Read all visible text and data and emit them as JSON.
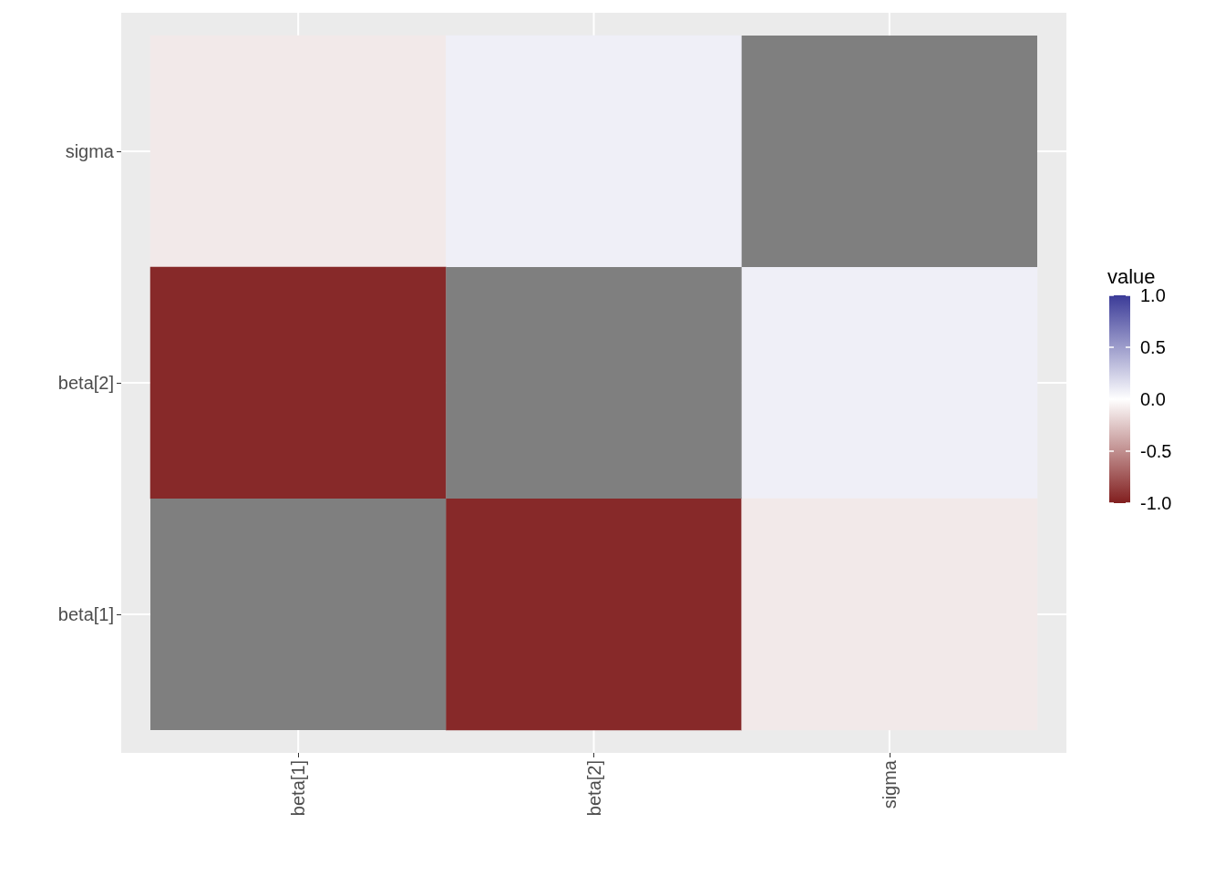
{
  "chart_data": {
    "type": "heatmap",
    "legend_title": "value",
    "categories": [
      "beta[1]",
      "beta[2]",
      "sigma"
    ],
    "y_categories": [
      "sigma",
      "beta[2]",
      "beta[1]"
    ],
    "cells": [
      [
        -0.1,
        0.08,
        null
      ],
      [
        -0.95,
        null,
        0.08
      ],
      [
        null,
        -0.95,
        -0.1
      ]
    ],
    "clim": [
      -1,
      1
    ],
    "cticks": [
      {
        "value": -1,
        "label": "-1.0"
      },
      {
        "value": -0.5,
        "label": "-0.5"
      },
      {
        "value": 0,
        "label": "0.0"
      },
      {
        "value": 0.5,
        "label": "0.5"
      },
      {
        "value": 1,
        "label": "1.0"
      }
    ],
    "grid": true
  }
}
